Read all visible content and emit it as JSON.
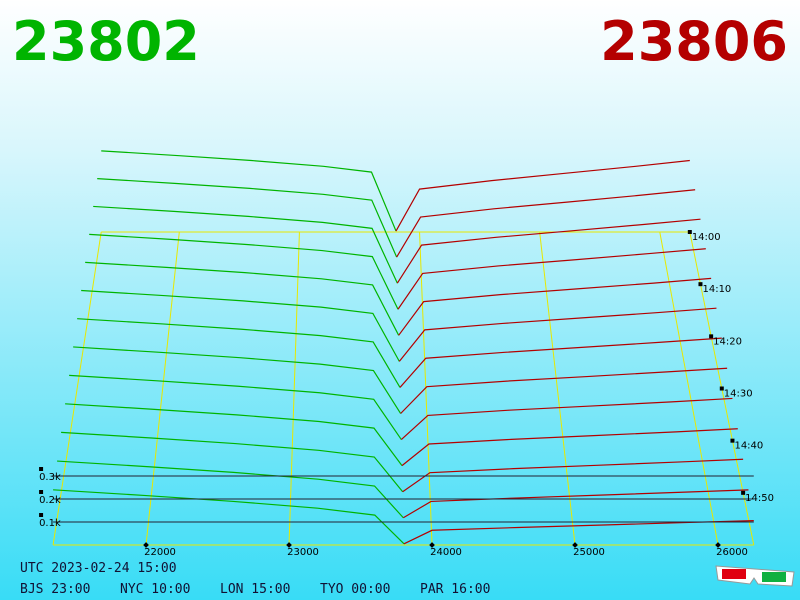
{
  "chart_data": {
    "type": "depth3d",
    "best_bid": 23802,
    "best_ask": 23806,
    "bid_color": "#00b400",
    "ask_color": "#b40000",
    "price_lim": [
      21350,
      26250
    ],
    "price_ticks": [
      22000,
      23000,
      24000,
      25000,
      26000
    ],
    "amount_ticks": [
      {
        "value": 100,
        "label": "0.1k"
      },
      {
        "value": 200,
        "label": "0.2k"
      },
      {
        "value": 300,
        "label": "0.3k"
      }
    ],
    "tlim": [
      "14:00",
      "15:00"
    ],
    "time_ticks": [
      "14:00",
      "14:10",
      "14:20",
      "14:30",
      "14:40",
      "14:50"
    ],
    "bid_prices": [
      21350,
      22000,
      22600,
      23200,
      23600,
      23804
    ],
    "ask_prices": [
      23804,
      24000,
      24600,
      25200,
      25800,
      26250
    ],
    "snapshots": [
      {
        "bids": [
          420,
          395,
          370,
          340,
          310,
          5
        ],
        "asks": [
          5,
          222,
          266,
          303,
          340,
          370
        ]
      },
      {
        "bids": [
          405,
          380,
          355,
          325,
          295,
          5
        ],
        "asks": [
          5,
          209,
          251,
          285,
          320,
          348
        ]
      },
      {
        "bids": [
          390,
          365,
          340,
          310,
          280,
          5
        ],
        "asks": [
          5,
          196,
          235,
          267,
          300,
          326
        ]
      },
      {
        "bids": [
          375,
          350,
          325,
          295,
          265,
          5
        ],
        "asks": [
          5,
          182,
          219,
          249,
          280,
          304
        ]
      },
      {
        "bids": [
          360,
          335,
          310,
          280,
          250,
          5
        ],
        "asks": [
          5,
          169,
          203,
          231,
          259,
          282
        ]
      },
      {
        "bids": [
          345,
          320,
          295,
          265,
          235,
          5
        ],
        "asks": [
          5,
          156,
          187,
          213,
          239,
          260
        ]
      },
      {
        "bids": [
          330,
          305,
          280,
          250,
          220,
          5
        ],
        "asks": [
          5,
          143,
          171,
          195,
          219,
          238
        ]
      },
      {
        "bids": [
          315,
          290,
          265,
          235,
          205,
          5
        ],
        "asks": [
          5,
          130,
          156,
          177,
          199,
          216
        ]
      },
      {
        "bids": [
          300,
          275,
          250,
          220,
          190,
          5
        ],
        "asks": [
          5,
          116,
          140,
          159,
          178,
          194
        ]
      },
      {
        "bids": [
          285,
          260,
          235,
          205,
          175,
          5
        ],
        "asks": [
          5,
          103,
          124,
          141,
          158,
          172
        ]
      },
      {
        "bids": [
          270,
          245,
          220,
          190,
          160,
          5
        ],
        "asks": [
          5,
          90,
          108,
          123,
          138,
          150
        ]
      },
      {
        "bids": [
          255,
          230,
          205,
          175,
          145,
          5
        ],
        "asks": [
          5,
          77,
          92,
          105,
          118,
          128
        ]
      },
      {
        "bids": [
          240,
          215,
          190,
          160,
          130,
          5
        ],
        "asks": [
          5,
          64,
          76,
          87,
          98,
          106
        ]
      }
    ]
  },
  "footer": {
    "utc": "UTC 2023-02-24 15:00",
    "zones": [
      "BJS 23:00",
      "NYC 10:00",
      "LON 15:00",
      "TYO 00:00",
      "PAR 16:00"
    ]
  }
}
